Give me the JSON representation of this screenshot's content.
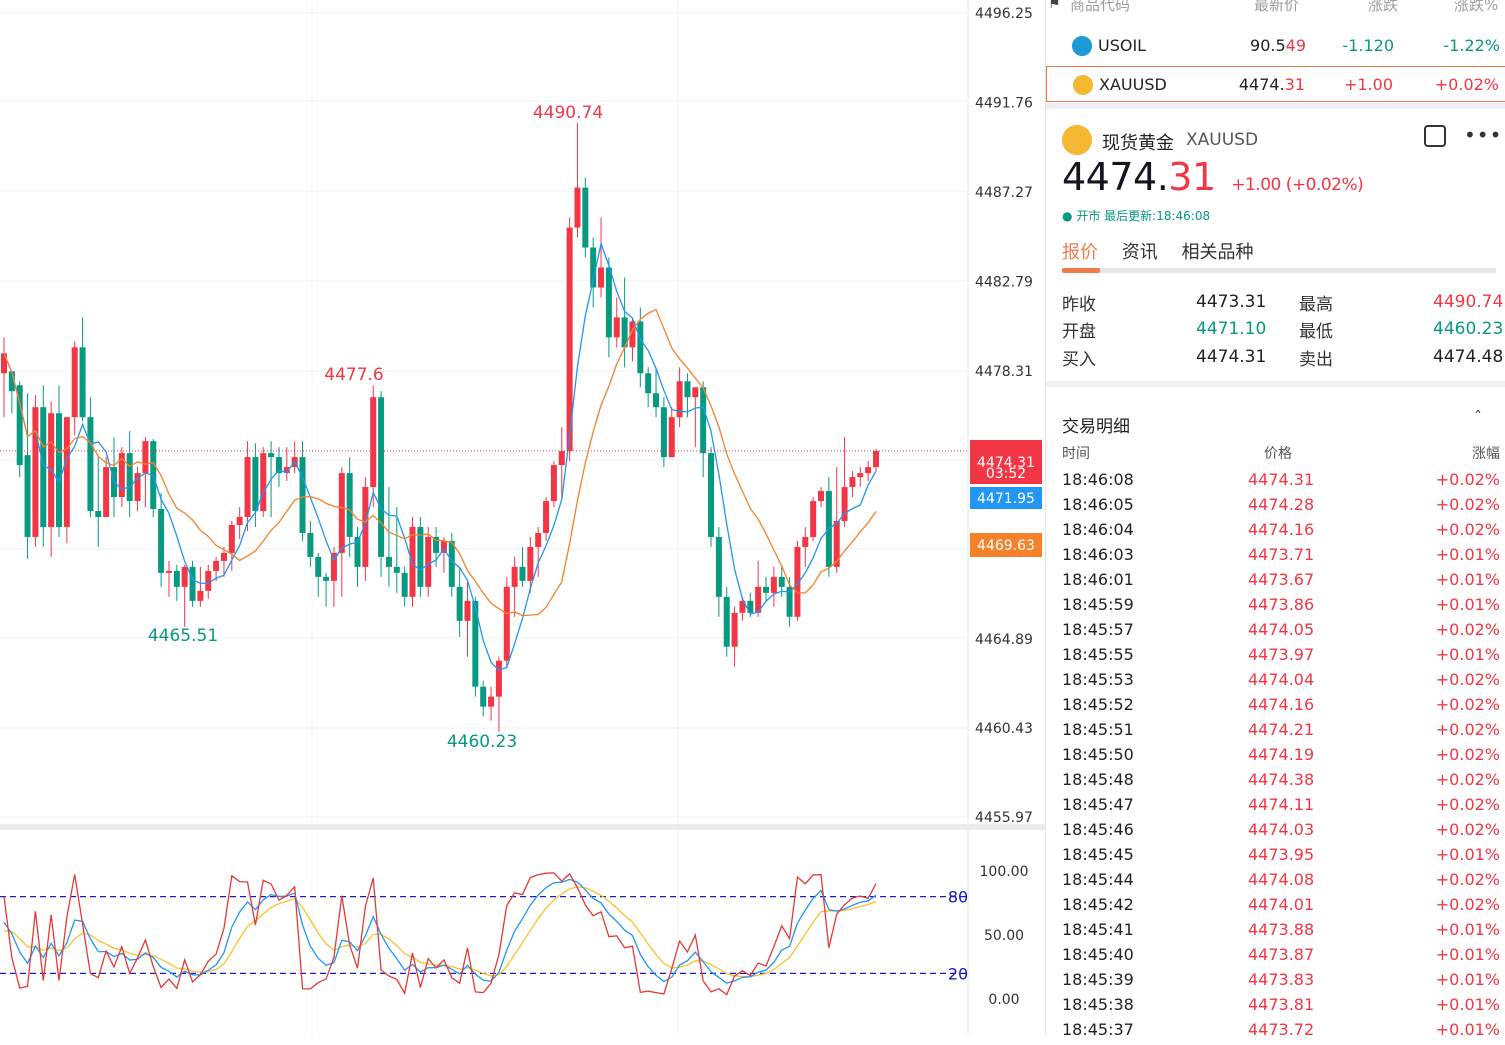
{
  "chart": {
    "price_axis": [
      "4496.25",
      "4491.76",
      "4487.27",
      "4482.79",
      "4478.31",
      "4464.89",
      "4460.43",
      "4455.97"
    ],
    "current_price_tag": "4474.31",
    "countdown_tag": "03:52",
    "ma_blue_tag": "4471.95",
    "ma_orange_tag": "4469.63",
    "annotations": {
      "high": "4490.74",
      "mid_high": "4477.6",
      "low_left": "4465.51",
      "low": "4460.23"
    },
    "osc_axis": [
      "100.00",
      "50.00",
      "0.00"
    ],
    "osc_levels": [
      "80",
      "20"
    ],
    "colors": {
      "up": "#f23645",
      "down": "#089981",
      "ma_blue": "#2196f3",
      "ma_orange": "#f5822a",
      "k_line": "#e53935",
      "d_line": "#2196f3",
      "j_line": "#fbc02d",
      "level": "#1a1acc"
    }
  },
  "chart_data": {
    "type": "candlestick",
    "ylim": [
      4455.97,
      4496.25
    ],
    "osc_ylim": [
      0,
      100
    ],
    "candles": [
      {
        "o": 4478.2,
        "h": 4480.0,
        "l": 4476.0,
        "c": 4479.2
      },
      {
        "o": 4478.3,
        "h": 4478.3,
        "l": 4476.2,
        "c": 4477.3
      },
      {
        "o": 4477.6,
        "h": 4477.8,
        "l": 4473.0,
        "c": 4473.6
      },
      {
        "o": 4474.1,
        "h": 4477.2,
        "l": 4468.9,
        "c": 4470.0
      },
      {
        "o": 4470.0,
        "h": 4477.1,
        "l": 4469.5,
        "c": 4476.5
      },
      {
        "o": 4476.5,
        "h": 4477.6,
        "l": 4469.5,
        "c": 4470.5
      },
      {
        "o": 4470.5,
        "h": 4476.8,
        "l": 4469.0,
        "c": 4476.2
      },
      {
        "o": 4476.2,
        "h": 4477.6,
        "l": 4470.0,
        "c": 4470.5
      },
      {
        "o": 4470.5,
        "h": 4476.0,
        "l": 4469.7,
        "c": 4476.0
      },
      {
        "o": 4476.0,
        "h": 4479.8,
        "l": 4475.1,
        "c": 4479.5
      },
      {
        "o": 4479.5,
        "h": 4481.0,
        "l": 4475.8,
        "c": 4476.0
      },
      {
        "o": 4476.0,
        "h": 4477.0,
        "l": 4471.0,
        "c": 4471.3
      },
      {
        "o": 4471.3,
        "h": 4474.0,
        "l": 4469.5,
        "c": 4471.0
      },
      {
        "o": 4471.0,
        "h": 4474.0,
        "l": 4471.0,
        "c": 4473.5
      },
      {
        "o": 4473.5,
        "h": 4475.0,
        "l": 4471.0,
        "c": 4472.0
      },
      {
        "o": 4472.0,
        "h": 4474.5,
        "l": 4471.5,
        "c": 4474.2
      },
      {
        "o": 4474.2,
        "h": 4475.3,
        "l": 4471.0,
        "c": 4471.8
      },
      {
        "o": 4471.8,
        "h": 4473.5,
        "l": 4471.3,
        "c": 4473.2
      },
      {
        "o": 4473.2,
        "h": 4475.0,
        "l": 4471.5,
        "c": 4474.8
      },
      {
        "o": 4474.8,
        "h": 4474.9,
        "l": 4471.0,
        "c": 4471.4
      },
      {
        "o": 4471.4,
        "h": 4472.2,
        "l": 4467.5,
        "c": 4468.2
      },
      {
        "o": 4468.2,
        "h": 4468.8,
        "l": 4467.0,
        "c": 4468.3
      },
      {
        "o": 4468.3,
        "h": 4468.6,
        "l": 4466.8,
        "c": 4467.5
      },
      {
        "o": 4467.5,
        "h": 4468.6,
        "l": 4465.5,
        "c": 4468.5
      },
      {
        "o": 4468.5,
        "h": 4468.8,
        "l": 4466.5,
        "c": 4466.8
      },
      {
        "o": 4466.8,
        "h": 4468.5,
        "l": 4466.5,
        "c": 4467.3
      },
      {
        "o": 4467.3,
        "h": 4468.6,
        "l": 4466.9,
        "c": 4468.3
      },
      {
        "o": 4468.3,
        "h": 4469.0,
        "l": 4467.8,
        "c": 4468.8
      },
      {
        "o": 4468.8,
        "h": 4469.5,
        "l": 4468.0,
        "c": 4469.2
      },
      {
        "o": 4469.2,
        "h": 4470.8,
        "l": 4468.3,
        "c": 4470.6
      },
      {
        "o": 4470.6,
        "h": 4471.5,
        "l": 4469.9,
        "c": 4471.0
      },
      {
        "o": 4471.0,
        "h": 4474.8,
        "l": 4470.3,
        "c": 4474.0
      },
      {
        "o": 4474.0,
        "h": 4474.7,
        "l": 4470.5,
        "c": 4471.3
      },
      {
        "o": 4471.3,
        "h": 4474.5,
        "l": 4471.0,
        "c": 4474.2
      },
      {
        "o": 4474.2,
        "h": 4474.8,
        "l": 4471.0,
        "c": 4474.0
      },
      {
        "o": 4474.0,
        "h": 4474.5,
        "l": 4472.5,
        "c": 4473.2
      },
      {
        "o": 4473.2,
        "h": 4474.5,
        "l": 4472.8,
        "c": 4473.5
      },
      {
        "o": 4473.5,
        "h": 4474.8,
        "l": 4473.2,
        "c": 4474.0
      },
      {
        "o": 4474.0,
        "h": 4474.8,
        "l": 4469.8,
        "c": 4470.2
      },
      {
        "o": 4470.2,
        "h": 4470.8,
        "l": 4468.5,
        "c": 4469.0
      },
      {
        "o": 4469.0,
        "h": 4469.2,
        "l": 4467.0,
        "c": 4468.0
      },
      {
        "o": 4468.0,
        "h": 4468.2,
        "l": 4466.5,
        "c": 4467.8
      },
      {
        "o": 4467.8,
        "h": 4469.5,
        "l": 4466.5,
        "c": 4469.2
      },
      {
        "o": 4469.2,
        "h": 4473.5,
        "l": 4467.0,
        "c": 4473.2
      },
      {
        "o": 4473.2,
        "h": 4474.0,
        "l": 4469.0,
        "c": 4470.0
      },
      {
        "o": 4470.0,
        "h": 4470.5,
        "l": 4467.5,
        "c": 4468.5
      },
      {
        "o": 4468.5,
        "h": 4473.0,
        "l": 4467.8,
        "c": 4472.5
      },
      {
        "o": 4472.5,
        "h": 4477.6,
        "l": 4471.5,
        "c": 4477.0
      },
      {
        "o": 4477.0,
        "h": 4477.3,
        "l": 4468.0,
        "c": 4469.0
      },
      {
        "o": 4469.0,
        "h": 4472.5,
        "l": 4467.5,
        "c": 4468.5
      },
      {
        "o": 4468.5,
        "h": 4471.5,
        "l": 4467.2,
        "c": 4468.2
      },
      {
        "o": 4468.2,
        "h": 4468.5,
        "l": 4466.5,
        "c": 4467.0
      },
      {
        "o": 4467.0,
        "h": 4471.0,
        "l": 4466.5,
        "c": 4470.5
      },
      {
        "o": 4470.5,
        "h": 4471.0,
        "l": 4467.0,
        "c": 4467.5
      },
      {
        "o": 4467.5,
        "h": 4470.5,
        "l": 4467.0,
        "c": 4470.0
      },
      {
        "o": 4470.0,
        "h": 4470.5,
        "l": 4468.5,
        "c": 4469.2
      },
      {
        "o": 4469.2,
        "h": 4470.0,
        "l": 4468.2,
        "c": 4469.8
      },
      {
        "o": 4469.8,
        "h": 4470.2,
        "l": 4467.0,
        "c": 4467.5
      },
      {
        "o": 4467.5,
        "h": 4468.5,
        "l": 4465.0,
        "c": 4465.8
      },
      {
        "o": 4465.8,
        "h": 4467.8,
        "l": 4464.0,
        "c": 4466.8
      },
      {
        "o": 4466.8,
        "h": 4467.0,
        "l": 4462.0,
        "c": 4462.5
      },
      {
        "o": 4462.5,
        "h": 4462.8,
        "l": 4461.0,
        "c": 4461.5
      },
      {
        "o": 4461.5,
        "h": 4462.5,
        "l": 4460.8,
        "c": 4462.0
      },
      {
        "o": 4462.0,
        "h": 4464.0,
        "l": 4460.23,
        "c": 4463.8
      },
      {
        "o": 4463.8,
        "h": 4468.0,
        "l": 4463.5,
        "c": 4467.5
      },
      {
        "o": 4467.5,
        "h": 4469.0,
        "l": 4466.0,
        "c": 4468.5
      },
      {
        "o": 4468.5,
        "h": 4469.5,
        "l": 4467.5,
        "c": 4467.8
      },
      {
        "o": 4467.8,
        "h": 4470.0,
        "l": 4467.2,
        "c": 4469.5
      },
      {
        "o": 4469.5,
        "h": 4470.5,
        "l": 4468.0,
        "c": 4470.2
      },
      {
        "o": 4470.2,
        "h": 4472.0,
        "l": 4469.8,
        "c": 4471.8
      },
      {
        "o": 4471.8,
        "h": 4473.8,
        "l": 4471.5,
        "c": 4473.6
      },
      {
        "o": 4473.6,
        "h": 4475.5,
        "l": 4472.0,
        "c": 4474.3
      },
      {
        "o": 4474.3,
        "h": 4486.0,
        "l": 4473.8,
        "c": 4485.5
      },
      {
        "o": 4485.5,
        "h": 4490.74,
        "l": 4485.0,
        "c": 4487.5
      },
      {
        "o": 4487.5,
        "h": 4488.0,
        "l": 4484.0,
        "c": 4484.5
      },
      {
        "o": 4484.5,
        "h": 4485.0,
        "l": 4481.5,
        "c": 4482.5
      },
      {
        "o": 4482.5,
        "h": 4486.0,
        "l": 4482.0,
        "c": 4483.5
      },
      {
        "o": 4483.5,
        "h": 4484.0,
        "l": 4479.0,
        "c": 4480.0
      },
      {
        "o": 4480.0,
        "h": 4482.0,
        "l": 4479.5,
        "c": 4481.0
      },
      {
        "o": 4481.0,
        "h": 4483.0,
        "l": 4478.5,
        "c": 4479.5
      },
      {
        "o": 4479.5,
        "h": 4481.0,
        "l": 4478.8,
        "c": 4480.8
      },
      {
        "o": 4480.8,
        "h": 4481.5,
        "l": 4477.5,
        "c": 4478.2
      },
      {
        "o": 4478.2,
        "h": 4478.5,
        "l": 4476.5,
        "c": 4477.2
      },
      {
        "o": 4477.2,
        "h": 4478.5,
        "l": 4476.0,
        "c": 4476.5
      },
      {
        "o": 4476.5,
        "h": 4477.0,
        "l": 4473.5,
        "c": 4474.0
      },
      {
        "o": 4474.0,
        "h": 4476.5,
        "l": 4474.0,
        "c": 4476.0
      },
      {
        "o": 4476.0,
        "h": 4478.5,
        "l": 4475.5,
        "c": 4477.8
      },
      {
        "o": 4477.8,
        "h": 4478.2,
        "l": 4476.0,
        "c": 4477.0
      },
      {
        "o": 4477.0,
        "h": 4477.5,
        "l": 4474.5,
        "c": 4477.5
      },
      {
        "o": 4477.5,
        "h": 4477.8,
        "l": 4473.0,
        "c": 4474.2
      },
      {
        "o": 4474.2,
        "h": 4474.5,
        "l": 4469.5,
        "c": 4470.0
      },
      {
        "o": 4470.0,
        "h": 4470.5,
        "l": 4466.0,
        "c": 4467.0
      },
      {
        "o": 4467.0,
        "h": 4467.5,
        "l": 4464.0,
        "c": 4464.5
      },
      {
        "o": 4464.5,
        "h": 4466.5,
        "l": 4463.5,
        "c": 4466.2
      },
      {
        "o": 4466.2,
        "h": 4467.0,
        "l": 4465.8,
        "c": 4466.8
      },
      {
        "o": 4466.8,
        "h": 4467.2,
        "l": 4466.0,
        "c": 4466.2
      },
      {
        "o": 4466.2,
        "h": 4468.8,
        "l": 4466.0,
        "c": 4467.5
      },
      {
        "o": 4467.5,
        "h": 4468.0,
        "l": 4466.8,
        "c": 4467.2
      },
      {
        "o": 4467.2,
        "h": 4468.5,
        "l": 4466.5,
        "c": 4468.0
      },
      {
        "o": 4468.0,
        "h": 4468.5,
        "l": 4467.0,
        "c": 4467.5
      },
      {
        "o": 4467.5,
        "h": 4468.0,
        "l": 4465.5,
        "c": 4466.0
      },
      {
        "o": 4466.0,
        "h": 4469.8,
        "l": 4465.8,
        "c": 4469.5
      },
      {
        "o": 4469.5,
        "h": 4470.5,
        "l": 4468.5,
        "c": 4470.0
      },
      {
        "o": 4470.0,
        "h": 4472.0,
        "l": 4469.8,
        "c": 4471.8
      },
      {
        "o": 4471.8,
        "h": 4472.5,
        "l": 4471.5,
        "c": 4472.3
      },
      {
        "o": 4472.3,
        "h": 4473.0,
        "l": 4468.0,
        "c": 4468.5
      },
      {
        "o": 4468.5,
        "h": 4473.5,
        "l": 4468.2,
        "c": 4470.8
      },
      {
        "o": 4470.8,
        "h": 4475.0,
        "l": 4470.5,
        "c": 4472.5
      },
      {
        "o": 4472.5,
        "h": 4473.3,
        "l": 4472.0,
        "c": 4473.0
      },
      {
        "o": 4473.0,
        "h": 4473.5,
        "l": 4472.5,
        "c": 4473.2
      },
      {
        "o": 4473.2,
        "h": 4473.8,
        "l": 4472.8,
        "c": 4473.5
      },
      {
        "o": 4473.5,
        "h": 4474.4,
        "l": 4473.3,
        "c": 4474.31
      }
    ]
  },
  "watchlist": {
    "headers": [
      "商品代码",
      "最新价",
      "涨跌",
      "涨跌%"
    ],
    "rows": [
      {
        "symbol": "USOIL",
        "price_main": "90.5",
        "price_tail": "49",
        "chg": "-1.120",
        "pct": "-1.22%"
      },
      {
        "symbol": "XAUUSD",
        "price_main": "4474.",
        "price_tail": "31",
        "chg": "+1.00",
        "pct": "+0.02%"
      }
    ]
  },
  "detail": {
    "name": "现货黄金",
    "code": "XAUUSD",
    "price_main": "4474.",
    "price_tail": "31",
    "change": "+1.00 (+0.02%)",
    "status": "开市",
    "update_label": "最后更新:18:46:08",
    "tabs": [
      "报价",
      "资讯",
      "相关品种"
    ]
  },
  "stats": [
    {
      "label": "昨收",
      "value": "4473.31",
      "label2": "最高",
      "value2": "4490.74"
    },
    {
      "label": "开盘",
      "value": "4471.10",
      "label2": "最低",
      "value2": "4460.23"
    },
    {
      "label": "买入",
      "value": "4474.31",
      "label2": "卖出",
      "value2": "4474.48"
    }
  ],
  "trades": {
    "title": "交易明细",
    "headers": [
      "时间",
      "价格",
      "涨幅"
    ],
    "rows": [
      [
        "18:46:08",
        "4474.31",
        "+0.02%"
      ],
      [
        "18:46:05",
        "4474.28",
        "+0.02%"
      ],
      [
        "18:46:04",
        "4474.16",
        "+0.02%"
      ],
      [
        "18:46:03",
        "4473.71",
        "+0.01%"
      ],
      [
        "18:46:01",
        "4473.67",
        "+0.01%"
      ],
      [
        "18:45:59",
        "4473.86",
        "+0.01%"
      ],
      [
        "18:45:57",
        "4474.05",
        "+0.02%"
      ],
      [
        "18:45:55",
        "4473.97",
        "+0.01%"
      ],
      [
        "18:45:53",
        "4474.04",
        "+0.02%"
      ],
      [
        "18:45:52",
        "4474.16",
        "+0.02%"
      ],
      [
        "18:45:51",
        "4474.21",
        "+0.02%"
      ],
      [
        "18:45:50",
        "4474.19",
        "+0.02%"
      ],
      [
        "18:45:48",
        "4474.38",
        "+0.02%"
      ],
      [
        "18:45:47",
        "4474.11",
        "+0.02%"
      ],
      [
        "18:45:46",
        "4474.03",
        "+0.02%"
      ],
      [
        "18:45:45",
        "4473.95",
        "+0.01%"
      ],
      [
        "18:45:44",
        "4474.08",
        "+0.02%"
      ],
      [
        "18:45:42",
        "4474.01",
        "+0.02%"
      ],
      [
        "18:45:41",
        "4473.88",
        "+0.01%"
      ],
      [
        "18:45:40",
        "4473.87",
        "+0.01%"
      ],
      [
        "18:45:39",
        "4473.83",
        "+0.01%"
      ],
      [
        "18:45:38",
        "4473.81",
        "+0.01%"
      ],
      [
        "18:45:37",
        "4473.72",
        "+0.01%"
      ]
    ]
  }
}
